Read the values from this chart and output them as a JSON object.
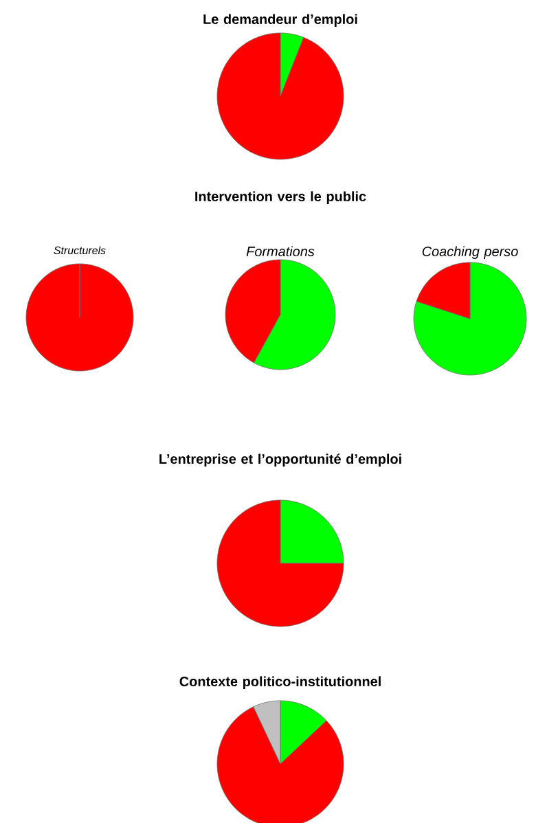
{
  "chart_data": [
    {
      "type": "pie",
      "title": "Le demandeur d’emploi",
      "categories": [
        null,
        null
      ],
      "values": [
        6,
        94
      ],
      "colors": [
        "#00ff00",
        "#ff0000"
      ]
    },
    {
      "type": "other",
      "title": "Intervention vers le public"
    },
    {
      "type": "pie",
      "title": "*Structurels*",
      "categories": [
        null,
        null
      ],
      "values": [
        0,
        100
      ],
      "colors": [
        "#00ff00",
        "#ff0000"
      ]
    },
    {
      "type": "pie",
      "title": "*Formations*",
      "categories": [
        null,
        null
      ],
      "values": [
        58,
        42
      ],
      "colors": [
        "#00ff00",
        "#ff0000"
      ]
    },
    {
      "type": "pie",
      "title": "*Coaching perso*",
      "categories": [
        null,
        null
      ],
      "values": [
        80,
        20
      ],
      "colors": [
        "#00ff00",
        "#ff0000"
      ]
    },
    {
      "type": "pie",
      "title": "L’entreprise et l’opportunité d’emploi",
      "categories": [
        null,
        null
      ],
      "values": [
        25,
        75
      ],
      "colors": [
        "#00ff00",
        "#ff0000"
      ]
    },
    {
      "type": "pie",
      "title": "Contexte politico-institutionnel",
      "categories": [
        null,
        null,
        null
      ],
      "values": [
        13,
        80,
        7
      ],
      "colors": [
        "#00ff00",
        "#ff0000",
        "#c0c0c0"
      ]
    }
  ]
}
